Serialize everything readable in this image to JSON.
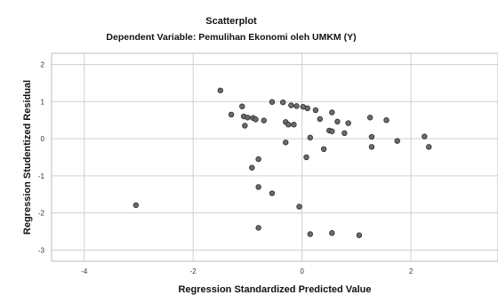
{
  "chart_data": {
    "type": "scatter",
    "title": "Scatterplot",
    "subtitle": "Dependent Variable: Pemulihan Ekonomi oleh UMKM (Y)",
    "xlabel": "Regression Standardized Predicted Value",
    "ylabel": "Regression Studentized Residual",
    "xlim": [
      -4.6,
      3.6
    ],
    "ylim": [
      -3.3,
      2.3
    ],
    "x_ticks": [
      -4,
      -2,
      0,
      2
    ],
    "y_ticks": [
      2,
      1,
      0,
      -1,
      -2,
      -3
    ],
    "x_tick_labels": [
      "-4",
      "-2",
      "0",
      "2"
    ],
    "y_tick_labels": [
      "2",
      "1",
      "0",
      "-1",
      "-2",
      "-3"
    ],
    "grid": true,
    "colors": {
      "point_fill": "#6b6b6b",
      "point_stroke": "#2b2b2b",
      "grid": "#d0d0d0",
      "frame": "#bbbbbb"
    },
    "points": [
      {
        "x": -3.05,
        "y": -1.79
      },
      {
        "x": -1.5,
        "y": 1.3
      },
      {
        "x": -1.3,
        "y": 0.65
      },
      {
        "x": -1.1,
        "y": 0.87
      },
      {
        "x": -1.07,
        "y": 0.6
      },
      {
        "x": -1.05,
        "y": 0.35
      },
      {
        "x": -1.0,
        "y": 0.57
      },
      {
        "x": -0.9,
        "y": 0.56
      },
      {
        "x": -0.85,
        "y": 0.52
      },
      {
        "x": -0.7,
        "y": 0.49
      },
      {
        "x": -0.55,
        "y": 0.99
      },
      {
        "x": -0.35,
        "y": 0.98
      },
      {
        "x": -0.3,
        "y": 0.45
      },
      {
        "x": -0.25,
        "y": 0.38
      },
      {
        "x": -0.2,
        "y": 0.9
      },
      {
        "x": -0.15,
        "y": 0.38
      },
      {
        "x": -0.1,
        "y": 0.88
      },
      {
        "x": 0.02,
        "y": 0.86
      },
      {
        "x": 0.1,
        "y": 0.82
      },
      {
        "x": 0.25,
        "y": 0.77
      },
      {
        "x": 0.33,
        "y": 0.53
      },
      {
        "x": 0.5,
        "y": 0.22
      },
      {
        "x": 0.55,
        "y": 0.2
      },
      {
        "x": 0.65,
        "y": 0.46
      },
      {
        "x": 0.55,
        "y": 0.71
      },
      {
        "x": 0.85,
        "y": 0.42
      },
      {
        "x": 0.78,
        "y": 0.15
      },
      {
        "x": 1.25,
        "y": 0.57
      },
      {
        "x": 1.28,
        "y": 0.05
      },
      {
        "x": 1.28,
        "y": -0.22
      },
      {
        "x": 1.55,
        "y": 0.5
      },
      {
        "x": 1.75,
        "y": -0.06
      },
      {
        "x": 2.25,
        "y": 0.06
      },
      {
        "x": 2.33,
        "y": -0.22
      },
      {
        "x": -0.3,
        "y": -0.1
      },
      {
        "x": 0.15,
        "y": 0.03
      },
      {
        "x": 0.4,
        "y": -0.28
      },
      {
        "x": 0.08,
        "y": -0.5
      },
      {
        "x": -0.8,
        "y": -0.55
      },
      {
        "x": -0.92,
        "y": -0.78
      },
      {
        "x": -0.8,
        "y": -1.3
      },
      {
        "x": -0.55,
        "y": -1.47
      },
      {
        "x": -0.05,
        "y": -1.83
      },
      {
        "x": -0.8,
        "y": -2.4
      },
      {
        "x": 0.15,
        "y": -2.57
      },
      {
        "x": 0.55,
        "y": -2.54
      },
      {
        "x": 1.05,
        "y": -2.6
      }
    ]
  }
}
